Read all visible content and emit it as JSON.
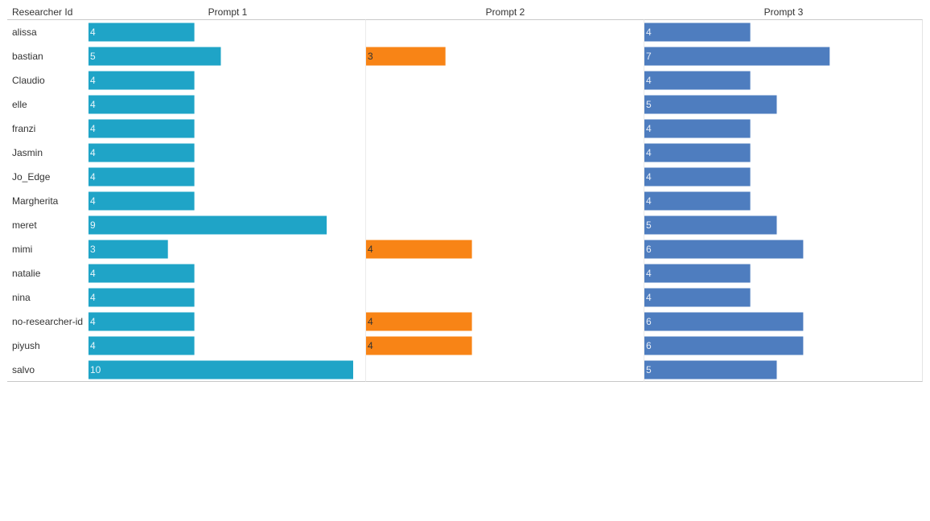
{
  "chart_data": {
    "type": "bar",
    "orientation": "horizontal",
    "row_header": "Researcher Id",
    "categories": [
      "alissa",
      "bastian",
      "Claudio",
      "elle",
      "franzi",
      "Jasmin",
      "Jo_Edge",
      "Margherita",
      "meret",
      "mimi",
      "natalie",
      "nina",
      "no-researcher-id",
      "piyush",
      "salvo"
    ],
    "series": [
      {
        "name": "Prompt 1",
        "color": "#1fa4c7",
        "label_color": "#e8f6fb",
        "values": [
          4,
          5,
          4,
          4,
          4,
          4,
          4,
          4,
          9,
          3,
          4,
          4,
          4,
          4,
          10
        ]
      },
      {
        "name": "Prompt 2",
        "color": "#f88416",
        "label_color": "#333333",
        "values": [
          null,
          3,
          null,
          null,
          null,
          null,
          null,
          null,
          null,
          4,
          null,
          null,
          4,
          4,
          null
        ]
      },
      {
        "name": "Prompt 3",
        "color": "#4e7dbf",
        "label_color": "#e8eef8",
        "values": [
          4,
          7,
          4,
          5,
          4,
          4,
          4,
          4,
          5,
          6,
          4,
          4,
          6,
          6,
          5
        ]
      }
    ],
    "xlim": [
      0,
      10.5
    ],
    "grid": false,
    "legend": "none"
  }
}
